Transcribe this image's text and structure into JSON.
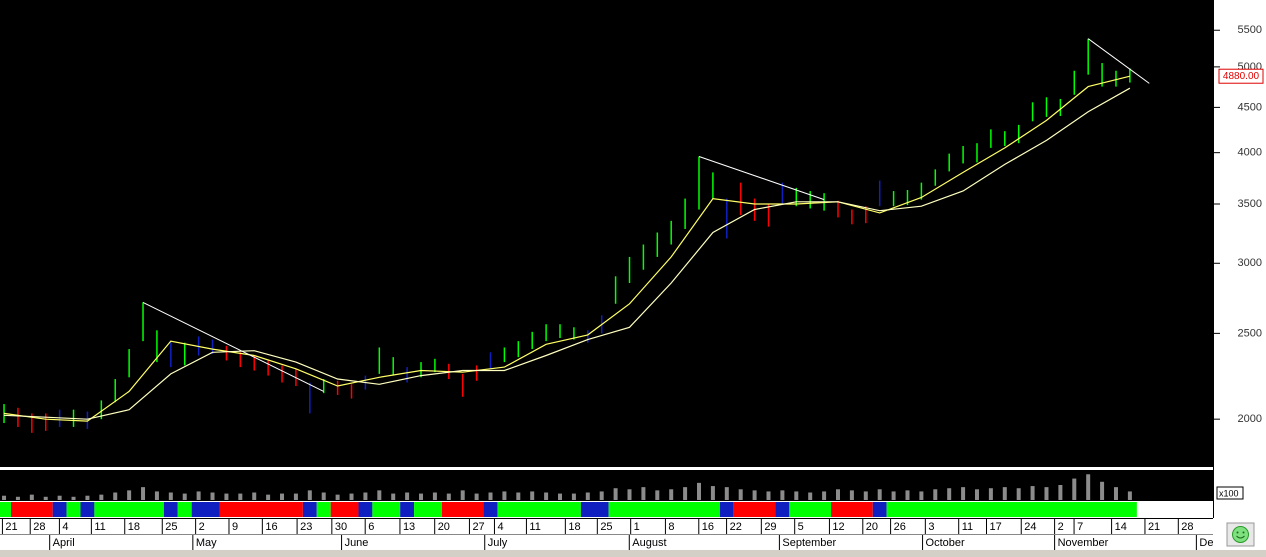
{
  "chart_data": {
    "type": "ohlc",
    "log_scale": true,
    "ylim": [
      1766,
      5950
    ],
    "yticks": [
      2000,
      2500,
      3000,
      3500,
      4000,
      4500,
      5000,
      5500
    ],
    "xlim": [
      -0.29,
      86.98
    ],
    "high": [
      2080,
      2060,
      2030,
      2030,
      2050,
      2050,
      2040,
      2100,
      2220,
      2400,
      2710,
      2520,
      2450,
      2440,
      2480,
      2460,
      2420,
      2380,
      2360,
      2330,
      2300,
      2280,
      2200,
      2220,
      2210,
      2190,
      2240,
      2410,
      2350,
      2290,
      2320,
      2340,
      2310,
      2250,
      2300,
      2380,
      2410,
      2450,
      2510,
      2560,
      2560,
      2540,
      2520,
      2620,
      2900,
      3050,
      3150,
      3250,
      3350,
      3550,
      3960,
      3800,
      3550,
      3700,
      3550,
      3500,
      3700,
      3650,
      3620,
      3600,
      3530,
      3450,
      3480,
      3720,
      3620,
      3630,
      3700,
      3830,
      3990,
      4070,
      4100,
      4250,
      4230,
      4300,
      4560,
      4620,
      4600,
      4950,
      5380,
      5050,
      4950,
      4980
    ],
    "low": [
      1980,
      1960,
      1930,
      1940,
      1960,
      1960,
      1950,
      2000,
      2090,
      2230,
      2450,
      2320,
      2290,
      2300,
      2360,
      2370,
      2330,
      2290,
      2270,
      2240,
      2200,
      2180,
      2030,
      2140,
      2130,
      2110,
      2160,
      2250,
      2240,
      2200,
      2230,
      2260,
      2220,
      2120,
      2210,
      2280,
      2320,
      2350,
      2400,
      2450,
      2470,
      2460,
      2440,
      2500,
      2700,
      2850,
      2950,
      3050,
      3150,
      3280,
      3450,
      3550,
      3200,
      3400,
      3350,
      3300,
      3500,
      3480,
      3460,
      3440,
      3380,
      3320,
      3330,
      3480,
      3480,
      3490,
      3540,
      3670,
      3810,
      3890,
      3900,
      4050,
      4070,
      4100,
      4340,
      4390,
      4400,
      4650,
      4900,
      4750,
      4750,
      4800
    ],
    "state_segments": [
      {
        "start": 0,
        "end": 0,
        "color": "#00ff00"
      },
      {
        "start": 1,
        "end": 3,
        "color": "#ff0000"
      },
      {
        "start": 4,
        "end": 4,
        "color": "#1020c0"
      },
      {
        "start": 5,
        "end": 5,
        "color": "#00ff00"
      },
      {
        "start": 6,
        "end": 6,
        "color": "#1020c0"
      },
      {
        "start": 7,
        "end": 11,
        "color": "#00ff00"
      },
      {
        "start": 12,
        "end": 12,
        "color": "#1020c0"
      },
      {
        "start": 13,
        "end": 13,
        "color": "#00ff00"
      },
      {
        "start": 14,
        "end": 15,
        "color": "#1020c0"
      },
      {
        "start": 16,
        "end": 21,
        "color": "#ff0000"
      },
      {
        "start": 22,
        "end": 22,
        "color": "#1020c0"
      },
      {
        "start": 23,
        "end": 23,
        "color": "#00ff00"
      },
      {
        "start": 24,
        "end": 25,
        "color": "#ff0000"
      },
      {
        "start": 26,
        "end": 26,
        "color": "#1020c0"
      },
      {
        "start": 27,
        "end": 28,
        "color": "#00ff00"
      },
      {
        "start": 29,
        "end": 29,
        "color": "#1020c0"
      },
      {
        "start": 30,
        "end": 31,
        "color": "#00ff00"
      },
      {
        "start": 32,
        "end": 34,
        "color": "#ff0000"
      },
      {
        "start": 35,
        "end": 35,
        "color": "#1020c0"
      },
      {
        "start": 36,
        "end": 41,
        "color": "#00ff00"
      },
      {
        "start": 42,
        "end": 43,
        "color": "#1020c0"
      },
      {
        "start": 44,
        "end": 51,
        "color": "#00ff00"
      },
      {
        "start": 52,
        "end": 52,
        "color": "#1020c0"
      },
      {
        "start": 53,
        "end": 55,
        "color": "#ff0000"
      },
      {
        "start": 56,
        "end": 56,
        "color": "#1020c0"
      },
      {
        "start": 57,
        "end": 59,
        "color": "#00ff00"
      },
      {
        "start": 60,
        "end": 62,
        "color": "#ff0000"
      },
      {
        "start": 63,
        "end": 63,
        "color": "#1020c0"
      },
      {
        "start": 64,
        "end": 81,
        "color": "#00ff00"
      }
    ],
    "moving_averages": [
      {
        "color": "#ffff66",
        "x": [
          0,
          3,
          6,
          9,
          12,
          15,
          18,
          21,
          24,
          27,
          30,
          33,
          36,
          39,
          42,
          45,
          48,
          51,
          54,
          57,
          60,
          63,
          66,
          69,
          72,
          75,
          78,
          81
        ],
        "values": [
          2030,
          2000,
          1990,
          2150,
          2450,
          2400,
          2360,
          2280,
          2180,
          2230,
          2270,
          2260,
          2290,
          2430,
          2490,
          2700,
          3050,
          3550,
          3500,
          3500,
          3520,
          3420,
          3560,
          3800,
          4050,
          4350,
          4750,
          4880
        ]
      },
      {
        "color": "#ffffc0",
        "x": [
          0,
          3,
          6,
          9,
          12,
          15,
          18,
          21,
          24,
          27,
          30,
          33,
          36,
          39,
          42,
          45,
          48,
          51,
          54,
          57,
          60,
          63,
          66,
          69,
          72,
          75,
          78,
          81
        ],
        "values": [
          2020,
          2010,
          2000,
          2050,
          2250,
          2380,
          2390,
          2320,
          2220,
          2190,
          2240,
          2270,
          2270,
          2360,
          2460,
          2540,
          2850,
          3250,
          3450,
          3520,
          3520,
          3440,
          3480,
          3620,
          3880,
          4130,
          4450,
          4730
        ]
      }
    ],
    "trendlines": [
      {
        "color": "#ffffff",
        "x": [
          10,
          23
        ],
        "values": [
          2710,
          2150
        ]
      },
      {
        "color": "#ffffff",
        "x": [
          50,
          59
        ],
        "values": [
          3960,
          3540
        ]
      },
      {
        "color": "#ffffff",
        "x": [
          78,
          82.4
        ],
        "values": [
          5380,
          4790
        ]
      }
    ],
    "last": 4880,
    "last_label": "4880.00",
    "volume": {
      "unit_label": "x100",
      "color": "#8c8c8c",
      "vlim": [
        0,
        28
      ],
      "values": [
        4,
        3,
        5,
        3,
        4,
        3,
        4,
        5,
        7,
        9,
        12,
        8,
        7,
        6,
        8,
        7,
        6,
        6,
        7,
        5,
        6,
        6,
        9,
        7,
        5,
        6,
        7,
        9,
        6,
        7,
        6,
        7,
        6,
        9,
        6,
        7,
        8,
        7,
        8,
        7,
        6,
        6,
        7,
        8,
        11,
        10,
        12,
        9,
        10,
        12,
        16,
        13,
        12,
        10,
        9,
        8,
        9,
        8,
        7,
        8,
        10,
        9,
        8,
        10,
        8,
        9,
        8,
        10,
        11,
        12,
        10,
        11,
        12,
        11,
        13,
        12,
        14,
        20,
        24,
        17,
        12,
        8
      ]
    },
    "week_ticks": [
      {
        "value": 0.1,
        "label": "21"
      },
      {
        "value": 2.1,
        "label": "28"
      },
      {
        "value": 4.2,
        "label": "4"
      },
      {
        "value": 6.5,
        "label": "11"
      },
      {
        "value": 8.9,
        "label": "18"
      },
      {
        "value": 11.6,
        "label": "25"
      },
      {
        "value": 14.0,
        "label": "2"
      },
      {
        "value": 16.4,
        "label": "9"
      },
      {
        "value": 18.8,
        "label": "16"
      },
      {
        "value": 21.3,
        "label": "23"
      },
      {
        "value": 23.8,
        "label": "30"
      },
      {
        "value": 26.2,
        "label": "6"
      },
      {
        "value": 28.7,
        "label": "13"
      },
      {
        "value": 31.2,
        "label": "20"
      },
      {
        "value": 33.7,
        "label": "27"
      },
      {
        "value": 35.5,
        "label": "4"
      },
      {
        "value": 37.8,
        "label": "11"
      },
      {
        "value": 40.6,
        "label": "18"
      },
      {
        "value": 42.9,
        "label": "25"
      },
      {
        "value": 45.3,
        "label": "1"
      },
      {
        "value": 47.8,
        "label": "8"
      },
      {
        "value": 50.2,
        "label": "16"
      },
      {
        "value": 52.2,
        "label": "22"
      },
      {
        "value": 54.7,
        "label": "29"
      },
      {
        "value": 57.1,
        "label": "5"
      },
      {
        "value": 59.6,
        "label": "12"
      },
      {
        "value": 62.0,
        "label": "20"
      },
      {
        "value": 64.0,
        "label": "26"
      },
      {
        "value": 66.5,
        "label": "3"
      },
      {
        "value": 68.9,
        "label": "11"
      },
      {
        "value": 70.9,
        "label": "17"
      },
      {
        "value": 73.4,
        "label": "24"
      },
      {
        "value": 75.8,
        "label": "2"
      },
      {
        "value": 77.2,
        "label": "7"
      },
      {
        "value": 79.9,
        "label": "14"
      },
      {
        "value": 82.3,
        "label": "21"
      },
      {
        "value": 84.7,
        "label": "28"
      }
    ],
    "month_ticks": [
      {
        "value": 3.5,
        "label": "April"
      },
      {
        "value": 13.8,
        "label": "May"
      },
      {
        "value": 24.5,
        "label": "June"
      },
      {
        "value": 34.8,
        "label": "July"
      },
      {
        "value": 45.2,
        "label": "August"
      },
      {
        "value": 56.0,
        "label": "September"
      },
      {
        "value": 66.3,
        "label": "October"
      },
      {
        "value": 75.8,
        "label": "November"
      },
      {
        "value": 86.0,
        "label": "De"
      }
    ]
  }
}
